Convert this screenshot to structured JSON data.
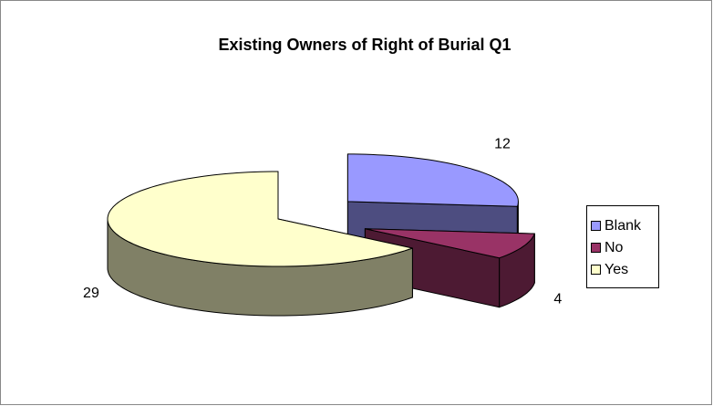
{
  "chart_data": {
    "type": "pie",
    "title": "Existing Owners of Right of Burial Q1",
    "categories": [
      "Blank",
      "No",
      "Yes"
    ],
    "values": [
      12,
      4,
      29
    ],
    "colors": [
      "#9999ff",
      "#993366",
      "#ffffcc"
    ],
    "legend": "right"
  }
}
